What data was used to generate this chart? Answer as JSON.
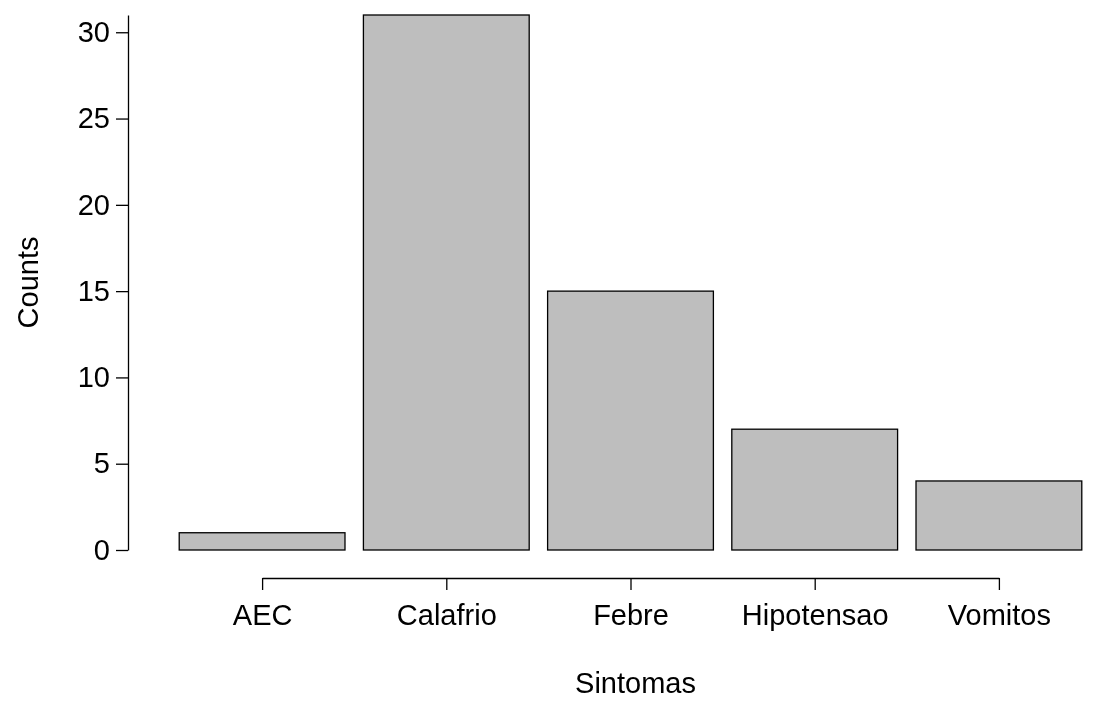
{
  "chart_data": {
    "type": "bar",
    "xlabel": "Sintomas",
    "ylabel": "Counts",
    "categories": [
      "AEC",
      "Calafrio",
      "Febre",
      "Hipotensao",
      "Vomitos"
    ],
    "values": [
      1,
      31,
      15,
      7,
      4
    ],
    "color": "#bebebe",
    "ylim": [
      0,
      31
    ],
    "yticks": [
      0,
      5,
      10,
      15,
      20,
      25,
      30
    ],
    "grid": false
  }
}
